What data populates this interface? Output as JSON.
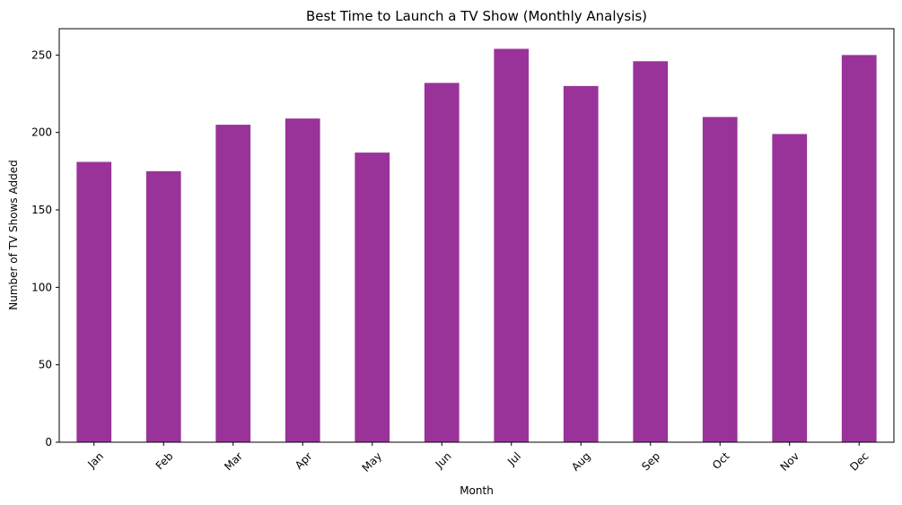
{
  "chart_data": {
    "type": "bar",
    "title": "Best Time to Launch a TV Show (Monthly Analysis)",
    "xlabel": "Month",
    "ylabel": "Number of TV Shows Added",
    "categories": [
      "Jan",
      "Feb",
      "Mar",
      "Apr",
      "May",
      "Jun",
      "Jul",
      "Aug",
      "Sep",
      "Oct",
      "Nov",
      "Dec"
    ],
    "values": [
      181,
      175,
      205,
      209,
      187,
      232,
      254,
      230,
      246,
      210,
      199,
      250
    ],
    "ylim": [
      0,
      267
    ],
    "yticks": [
      0,
      50,
      100,
      150,
      200,
      250
    ],
    "bar_color": "#993399",
    "grid": false,
    "xtick_rotation": 45
  }
}
